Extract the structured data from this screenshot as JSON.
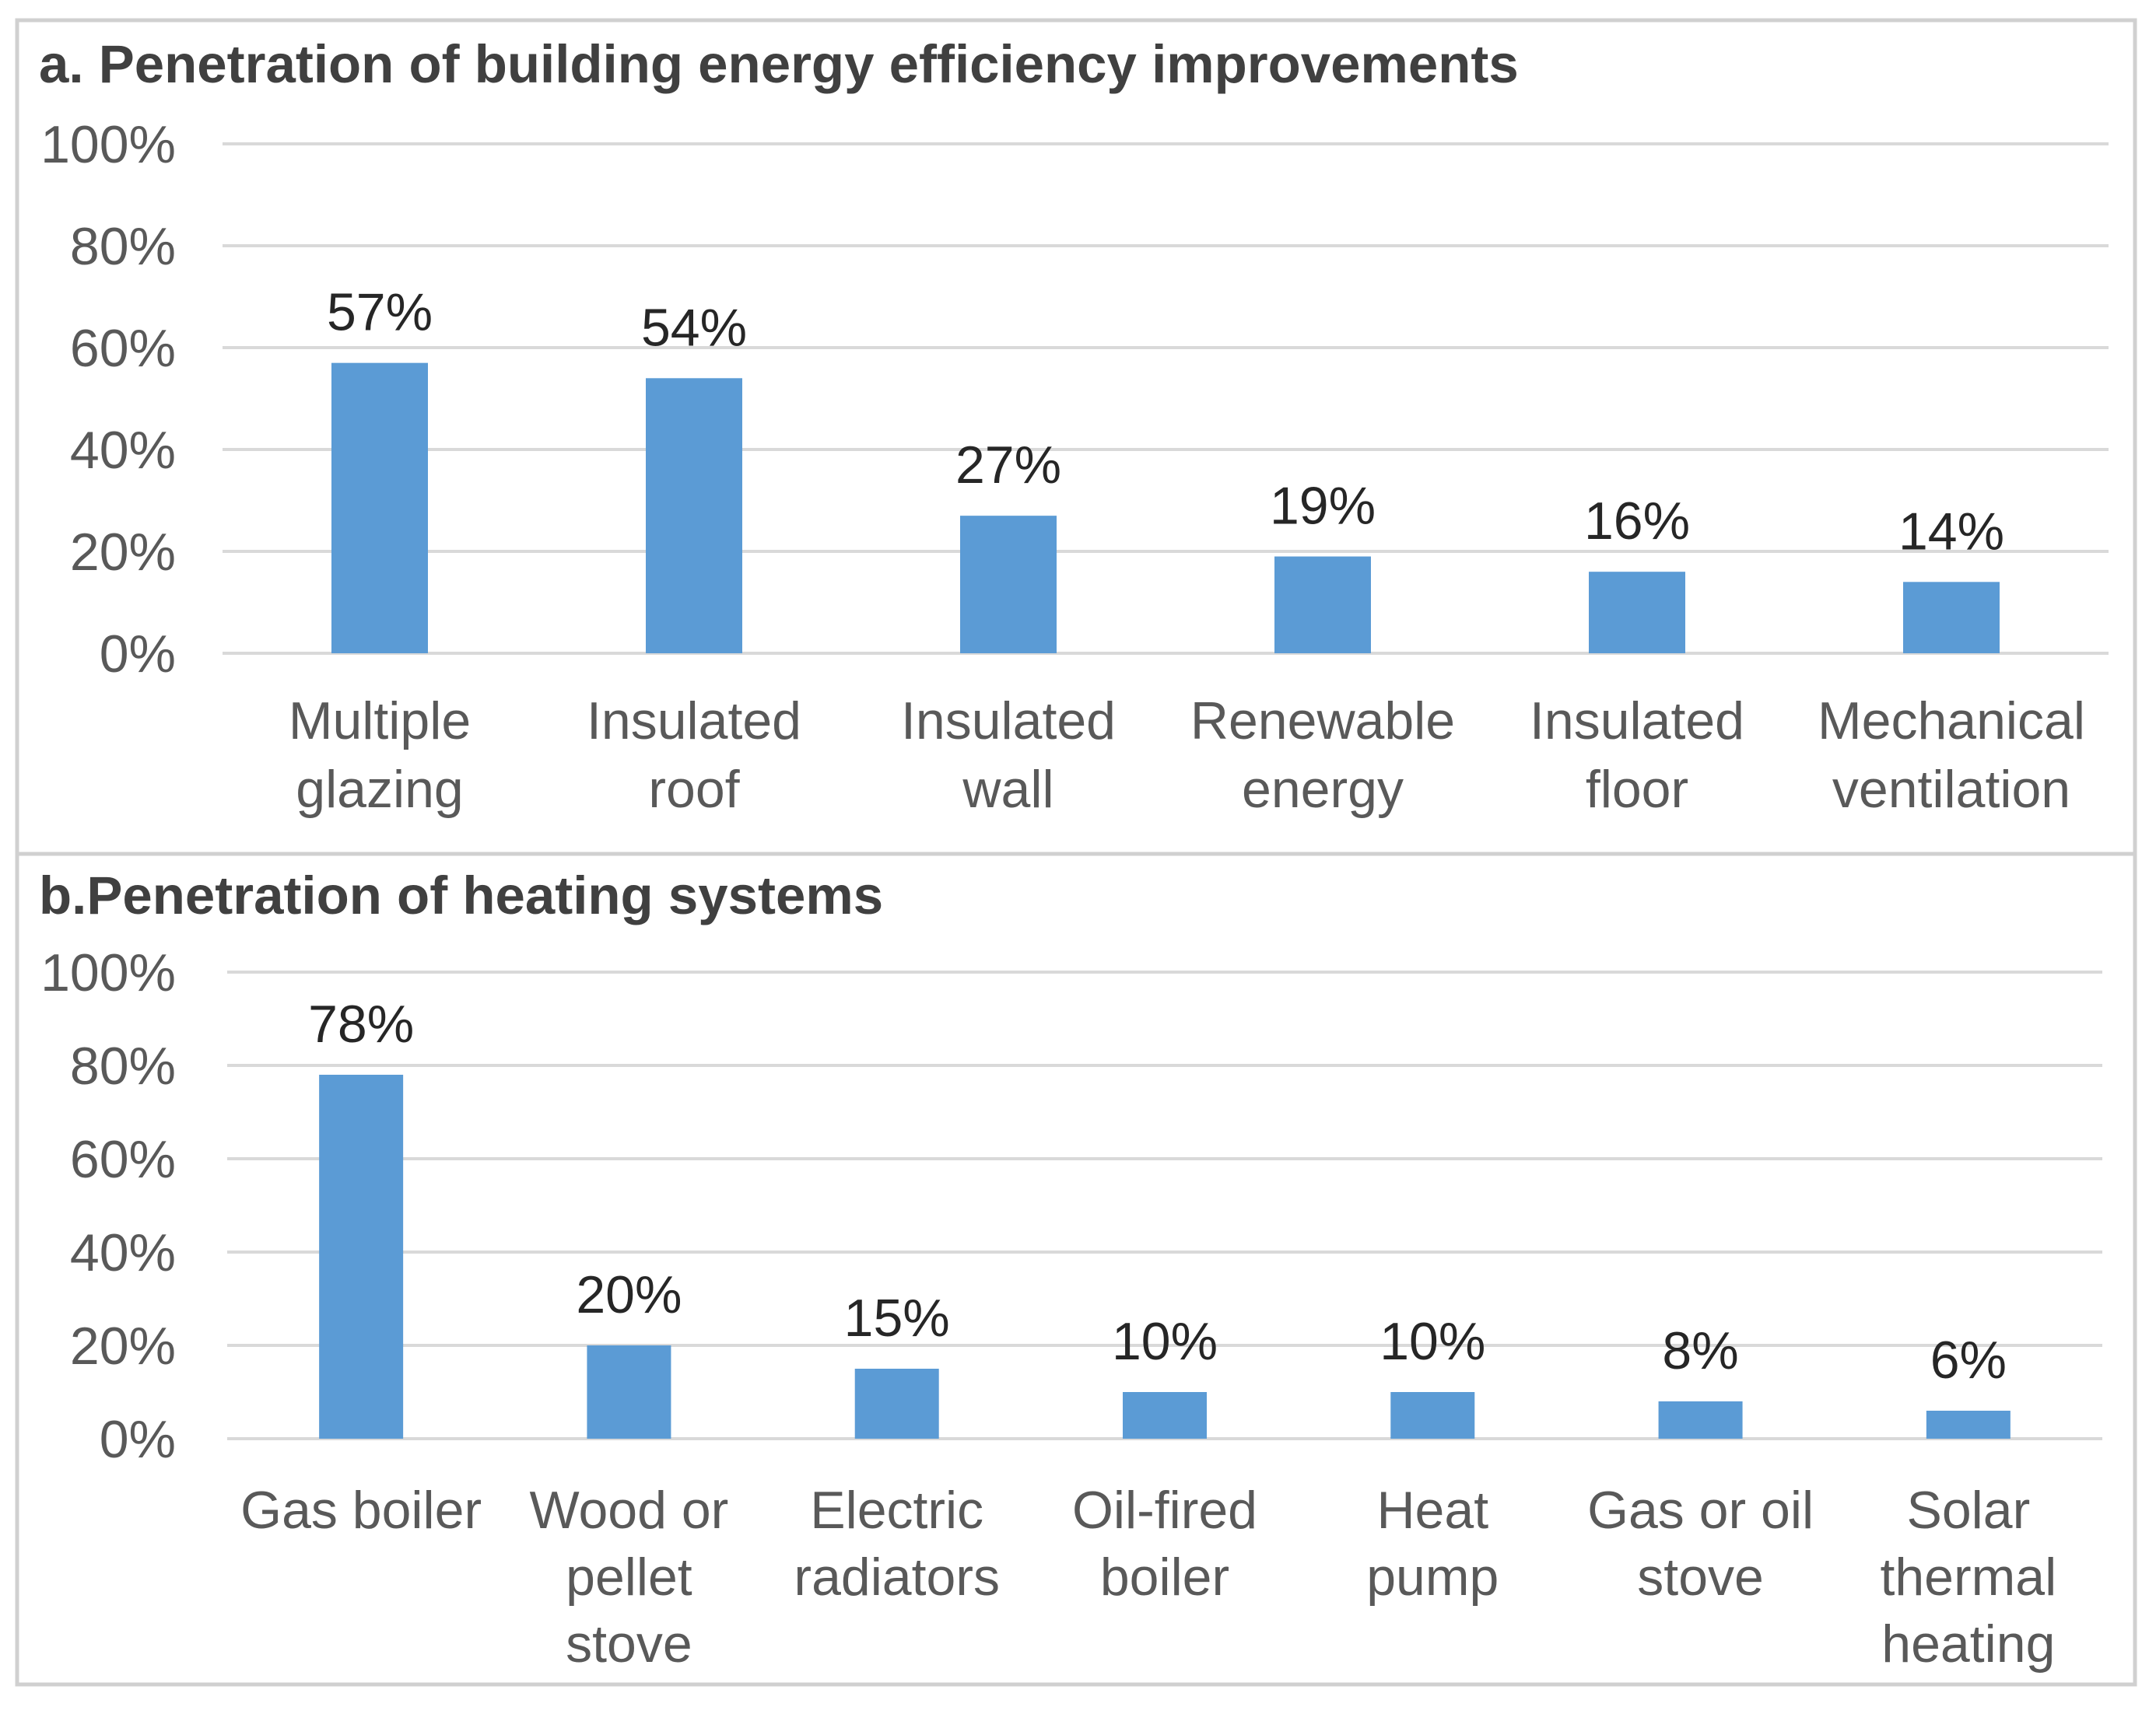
{
  "colors": {
    "bar": "#5b9bd5",
    "grid": "#d9d9d9",
    "frame": "#d0d0d0"
  },
  "chart_data": [
    {
      "type": "bar",
      "title": "a. Penetration of building energy efficiency improvements",
      "xlabel": "",
      "ylabel": "",
      "ylim": [
        0,
        100
      ],
      "yticks": [
        "0%",
        "20%",
        "40%",
        "60%",
        "80%",
        "100%"
      ],
      "categories": [
        [
          "Multiple",
          "glazing"
        ],
        [
          "Insulated",
          "roof"
        ],
        [
          "Insulated",
          "wall"
        ],
        [
          "Renewable",
          "energy"
        ],
        [
          "Insulated",
          "floor"
        ],
        [
          "Mechanical",
          "ventilation"
        ]
      ],
      "values": [
        57,
        54,
        27,
        19,
        16,
        14
      ],
      "data_labels": [
        "57%",
        "54%",
        "27%",
        "19%",
        "16%",
        "14%"
      ]
    },
    {
      "type": "bar",
      "title": "b.Penetration of heating systems",
      "xlabel": "",
      "ylabel": "",
      "ylim": [
        0,
        100
      ],
      "yticks": [
        "0%",
        "20%",
        "40%",
        "60%",
        "80%",
        "100%"
      ],
      "categories": [
        [
          "Gas boiler"
        ],
        [
          "Wood or",
          "pellet",
          "stove"
        ],
        [
          "Electric",
          "radiators"
        ],
        [
          "Oil-fired",
          "boiler"
        ],
        [
          "Heat",
          "pump"
        ],
        [
          "Gas or oil",
          "stove"
        ],
        [
          "Solar",
          "thermal",
          "heating"
        ]
      ],
      "values": [
        78,
        20,
        15,
        10,
        10,
        8,
        6
      ],
      "data_labels": [
        "78%",
        "20%",
        "15%",
        "10%",
        "10%",
        "8%",
        "6%"
      ]
    }
  ]
}
